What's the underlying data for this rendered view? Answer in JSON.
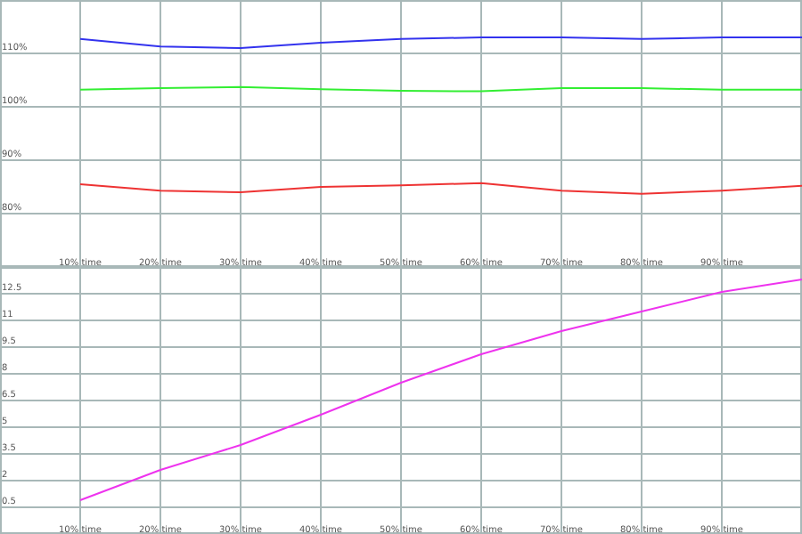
{
  "chart_data": [
    {
      "type": "line",
      "x": [
        10,
        20,
        30,
        40,
        50,
        60,
        70,
        80,
        90,
        100
      ],
      "xlim": [
        0,
        100
      ],
      "xticks": [
        {
          "value": 10,
          "label": "10% time"
        },
        {
          "value": 20,
          "label": "20% time"
        },
        {
          "value": 30,
          "label": "30% time"
        },
        {
          "value": 40,
          "label": "40% time"
        },
        {
          "value": 50,
          "label": "50% time"
        },
        {
          "value": 60,
          "label": "60% time"
        },
        {
          "value": 70,
          "label": "70% time"
        },
        {
          "value": 80,
          "label": "80% time"
        },
        {
          "value": 90,
          "label": "90% time"
        }
      ],
      "ylim": [
        70,
        120
      ],
      "yticks": [
        {
          "value": 80,
          "label": "80%"
        },
        {
          "value": 90,
          "label": "90%"
        },
        {
          "value": 100,
          "label": "100%"
        },
        {
          "value": 110,
          "label": "110%"
        }
      ],
      "grid": true,
      "series": [
        {
          "color": "#3333ee",
          "values": [
            112.7,
            111.3,
            111,
            112,
            112.7,
            113,
            113,
            112.7,
            113,
            113
          ]
        },
        {
          "color": "#33ee33",
          "values": [
            103.2,
            103.5,
            103.7,
            103.3,
            103,
            102.9,
            103.5,
            103.5,
            103.2,
            103.2
          ]
        },
        {
          "color": "#ee3333",
          "values": [
            85.5,
            84.3,
            84,
            85,
            85.3,
            85.7,
            84.3,
            83.7,
            84.3,
            85.2
          ]
        }
      ]
    },
    {
      "type": "line",
      "x": [
        10,
        20,
        30,
        40,
        50,
        60,
        70,
        80,
        90,
        100
      ],
      "xlim": [
        0,
        100
      ],
      "xticks": [
        {
          "value": 10,
          "label": "10% time"
        },
        {
          "value": 20,
          "label": "20% time"
        },
        {
          "value": 30,
          "label": "30% time"
        },
        {
          "value": 40,
          "label": "40% time"
        },
        {
          "value": 50,
          "label": "50% time"
        },
        {
          "value": 60,
          "label": "60% time"
        },
        {
          "value": 70,
          "label": "70% time"
        },
        {
          "value": 80,
          "label": "80% time"
        },
        {
          "value": 90,
          "label": "90% time"
        }
      ],
      "ylim": [
        -1,
        14
      ],
      "yticks": [
        0.5,
        2,
        3.5,
        5,
        6.5,
        8,
        9.5,
        11,
        12.5
      ],
      "grid": true,
      "series": [
        {
          "color": "#ee33ee",
          "values": [
            0.9,
            2.6,
            4,
            5.7,
            7.5,
            9.1,
            10.4,
            11.5,
            12.6,
            13.3
          ]
        }
      ]
    }
  ]
}
